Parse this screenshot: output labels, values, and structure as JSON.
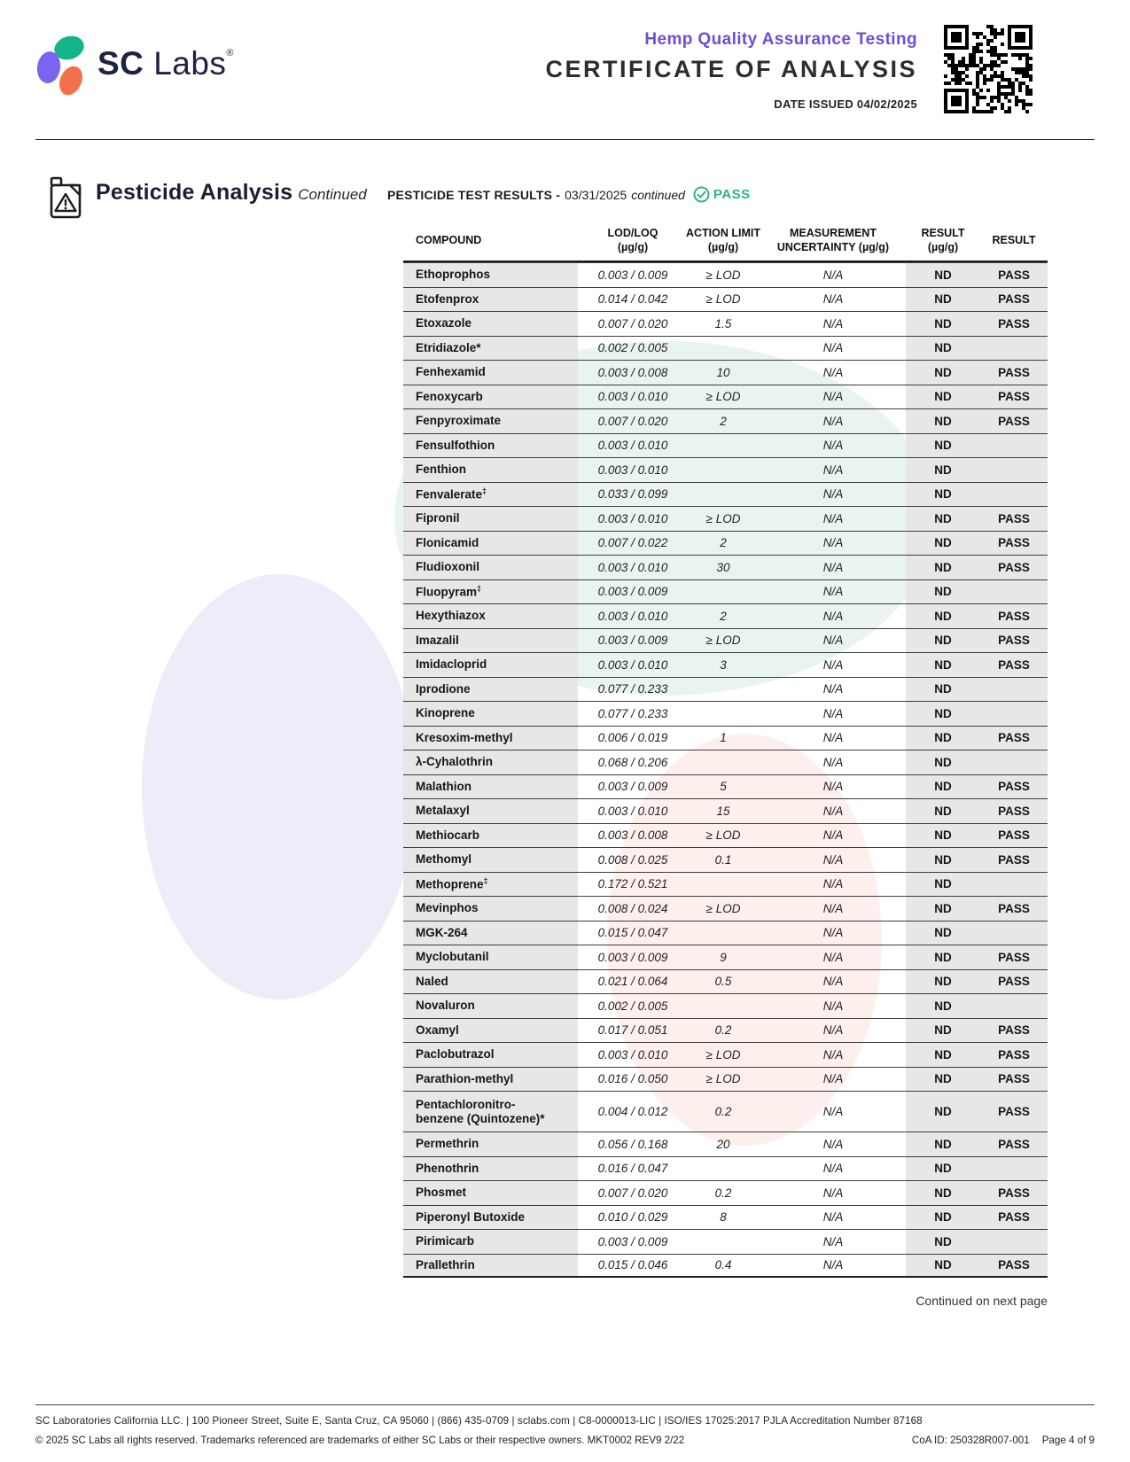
{
  "header": {
    "brand_sc": "SC",
    "brand_labs": "Labs",
    "brand_reg": "®",
    "program": "Hemp Quality Assurance Testing",
    "title": "CERTIFICATE OF ANALYSIS",
    "date_issued": "DATE ISSUED 04/02/2025"
  },
  "section": {
    "title": "Pesticide Analysis",
    "continued": "Continued",
    "results_label": "PESTICIDE TEST RESULTS -",
    "results_date": "03/31/2025",
    "results_continued": "continued",
    "overall_status": "PASS"
  },
  "table": {
    "columns": [
      {
        "label": "COMPOUND",
        "sub": ""
      },
      {
        "label": "LOD/LOQ",
        "sub": "(µg/g)"
      },
      {
        "label": "ACTION LIMIT",
        "sub": "(µg/g)"
      },
      {
        "label": "MEASUREMENT",
        "sub": "UNCERTAINTY (µg/g)"
      },
      {
        "label": "RESULT",
        "sub": "(µg/g)"
      },
      {
        "label": "RESULT",
        "sub": ""
      }
    ],
    "rows": [
      {
        "name": "Ethoprophos",
        "mark": "",
        "lod_loq": "0.003 / 0.009",
        "action_limit": "≥ LOD",
        "uncertainty": "N/A",
        "result": "ND",
        "status": "PASS"
      },
      {
        "name": "Etofenprox",
        "mark": "",
        "lod_loq": "0.014 / 0.042",
        "action_limit": "≥ LOD",
        "uncertainty": "N/A",
        "result": "ND",
        "status": "PASS"
      },
      {
        "name": "Etoxazole",
        "mark": "",
        "lod_loq": "0.007 / 0.020",
        "action_limit": "1.5",
        "uncertainty": "N/A",
        "result": "ND",
        "status": "PASS"
      },
      {
        "name": "Etridiazole*",
        "mark": "",
        "lod_loq": "0.002 / 0.005",
        "action_limit": "",
        "uncertainty": "N/A",
        "result": "ND",
        "status": ""
      },
      {
        "name": "Fenhexamid",
        "mark": "",
        "lod_loq": "0.003 / 0.008",
        "action_limit": "10",
        "uncertainty": "N/A",
        "result": "ND",
        "status": "PASS"
      },
      {
        "name": "Fenoxycarb",
        "mark": "",
        "lod_loq": "0.003 / 0.010",
        "action_limit": "≥ LOD",
        "uncertainty": "N/A",
        "result": "ND",
        "status": "PASS"
      },
      {
        "name": "Fenpyroximate",
        "mark": "",
        "lod_loq": "0.007 / 0.020",
        "action_limit": "2",
        "uncertainty": "N/A",
        "result": "ND",
        "status": "PASS"
      },
      {
        "name": "Fensulfothion",
        "mark": "",
        "lod_loq": "0.003 / 0.010",
        "action_limit": "",
        "uncertainty": "N/A",
        "result": "ND",
        "status": ""
      },
      {
        "name": "Fenthion",
        "mark": "",
        "lod_loq": "0.003 / 0.010",
        "action_limit": "",
        "uncertainty": "N/A",
        "result": "ND",
        "status": ""
      },
      {
        "name": "Fenvalerate",
        "mark": "‡",
        "lod_loq": "0.033 / 0.099",
        "action_limit": "",
        "uncertainty": "N/A",
        "result": "ND",
        "status": ""
      },
      {
        "name": "Fipronil",
        "mark": "",
        "lod_loq": "0.003 / 0.010",
        "action_limit": "≥ LOD",
        "uncertainty": "N/A",
        "result": "ND",
        "status": "PASS"
      },
      {
        "name": "Flonicamid",
        "mark": "",
        "lod_loq": "0.007 / 0.022",
        "action_limit": "2",
        "uncertainty": "N/A",
        "result": "ND",
        "status": "PASS"
      },
      {
        "name": "Fludioxonil",
        "mark": "",
        "lod_loq": "0.003 / 0.010",
        "action_limit": "30",
        "uncertainty": "N/A",
        "result": "ND",
        "status": "PASS"
      },
      {
        "name": "Fluopyram",
        "mark": "‡",
        "lod_loq": "0.003 / 0.009",
        "action_limit": "",
        "uncertainty": "N/A",
        "result": "ND",
        "status": ""
      },
      {
        "name": "Hexythiazox",
        "mark": "",
        "lod_loq": "0.003 / 0.010",
        "action_limit": "2",
        "uncertainty": "N/A",
        "result": "ND",
        "status": "PASS"
      },
      {
        "name": "Imazalil",
        "mark": "",
        "lod_loq": "0.003 / 0.009",
        "action_limit": "≥ LOD",
        "uncertainty": "N/A",
        "result": "ND",
        "status": "PASS"
      },
      {
        "name": "Imidacloprid",
        "mark": "",
        "lod_loq": "0.003 / 0.010",
        "action_limit": "3",
        "uncertainty": "N/A",
        "result": "ND",
        "status": "PASS"
      },
      {
        "name": "Iprodione",
        "mark": "",
        "lod_loq": "0.077 / 0.233",
        "action_limit": "",
        "uncertainty": "N/A",
        "result": "ND",
        "status": ""
      },
      {
        "name": "Kinoprene",
        "mark": "",
        "lod_loq": "0.077 / 0.233",
        "action_limit": "",
        "uncertainty": "N/A",
        "result": "ND",
        "status": ""
      },
      {
        "name": "Kresoxim-methyl",
        "mark": "",
        "lod_loq": "0.006 / 0.019",
        "action_limit": "1",
        "uncertainty": "N/A",
        "result": "ND",
        "status": "PASS"
      },
      {
        "name": "λ-Cyhalothrin",
        "mark": "",
        "lod_loq": "0.068 / 0.206",
        "action_limit": "",
        "uncertainty": "N/A",
        "result": "ND",
        "status": ""
      },
      {
        "name": "Malathion",
        "mark": "",
        "lod_loq": "0.003 / 0.009",
        "action_limit": "5",
        "uncertainty": "N/A",
        "result": "ND",
        "status": "PASS"
      },
      {
        "name": "Metalaxyl",
        "mark": "",
        "lod_loq": "0.003 / 0.010",
        "action_limit": "15",
        "uncertainty": "N/A",
        "result": "ND",
        "status": "PASS"
      },
      {
        "name": "Methiocarb",
        "mark": "",
        "lod_loq": "0.003 / 0.008",
        "action_limit": "≥ LOD",
        "uncertainty": "N/A",
        "result": "ND",
        "status": "PASS"
      },
      {
        "name": "Methomyl",
        "mark": "",
        "lod_loq": "0.008 / 0.025",
        "action_limit": "0.1",
        "uncertainty": "N/A",
        "result": "ND",
        "status": "PASS"
      },
      {
        "name": "Methoprene",
        "mark": "‡",
        "lod_loq": "0.172 / 0.521",
        "action_limit": "",
        "uncertainty": "N/A",
        "result": "ND",
        "status": ""
      },
      {
        "name": "Mevinphos",
        "mark": "",
        "lod_loq": "0.008 / 0.024",
        "action_limit": "≥ LOD",
        "uncertainty": "N/A",
        "result": "ND",
        "status": "PASS"
      },
      {
        "name": "MGK-264",
        "mark": "",
        "lod_loq": "0.015 / 0.047",
        "action_limit": "",
        "uncertainty": "N/A",
        "result": "ND",
        "status": ""
      },
      {
        "name": "Myclobutanil",
        "mark": "",
        "lod_loq": "0.003 / 0.009",
        "action_limit": "9",
        "uncertainty": "N/A",
        "result": "ND",
        "status": "PASS"
      },
      {
        "name": "Naled",
        "mark": "",
        "lod_loq": "0.021 / 0.064",
        "action_limit": "0.5",
        "uncertainty": "N/A",
        "result": "ND",
        "status": "PASS"
      },
      {
        "name": "Novaluron",
        "mark": "",
        "lod_loq": "0.002 / 0.005",
        "action_limit": "",
        "uncertainty": "N/A",
        "result": "ND",
        "status": ""
      },
      {
        "name": "Oxamyl",
        "mark": "",
        "lod_loq": "0.017 / 0.051",
        "action_limit": "0.2",
        "uncertainty": "N/A",
        "result": "ND",
        "status": "PASS"
      },
      {
        "name": "Paclobutrazol",
        "mark": "",
        "lod_loq": "0.003 / 0.010",
        "action_limit": "≥ LOD",
        "uncertainty": "N/A",
        "result": "ND",
        "status": "PASS"
      },
      {
        "name": "Parathion-methyl",
        "mark": "",
        "lod_loq": "0.016 / 0.050",
        "action_limit": "≥ LOD",
        "uncertainty": "N/A",
        "result": "ND",
        "status": "PASS"
      },
      {
        "name": "Pentachloronitro-\nbenzene (Quintozene)*",
        "mark": "",
        "lod_loq": "0.004 / 0.012",
        "action_limit": "0.2",
        "uncertainty": "N/A",
        "result": "ND",
        "status": "PASS",
        "tall": true
      },
      {
        "name": "Permethrin",
        "mark": "",
        "lod_loq": "0.056 / 0.168",
        "action_limit": "20",
        "uncertainty": "N/A",
        "result": "ND",
        "status": "PASS"
      },
      {
        "name": "Phenothrin",
        "mark": "",
        "lod_loq": "0.016 / 0.047",
        "action_limit": "",
        "uncertainty": "N/A",
        "result": "ND",
        "status": ""
      },
      {
        "name": "Phosmet",
        "mark": "",
        "lod_loq": "0.007 / 0.020",
        "action_limit": "0.2",
        "uncertainty": "N/A",
        "result": "ND",
        "status": "PASS"
      },
      {
        "name": "Piperonyl Butoxide",
        "mark": "",
        "lod_loq": "0.010 / 0.029",
        "action_limit": "8",
        "uncertainty": "N/A",
        "result": "ND",
        "status": "PASS"
      },
      {
        "name": "Pirimicarb",
        "mark": "",
        "lod_loq": "0.003 / 0.009",
        "action_limit": "",
        "uncertainty": "N/A",
        "result": "ND",
        "status": ""
      },
      {
        "name": "Prallethrin",
        "mark": "",
        "lod_loq": "0.015 / 0.046",
        "action_limit": "0.4",
        "uncertainty": "N/A",
        "result": "ND",
        "status": "PASS"
      }
    ]
  },
  "continued_note": "Continued on next page",
  "footer": {
    "line1": "SC Laboratories California LLC. | 100 Pioneer Street, Suite E, Santa Cruz, CA 95060 | (866) 435-0709 | sclabs.com | C8-0000013-LIC | ISO/IES 17025:2017 PJLA Accreditation Number 87168",
    "line2_left": "© 2025 SC Labs all rights reserved. Trademarks referenced are trademarks of either SC Labs or their respective owners. MKT0002 REV9 2/22",
    "coa_id": "CoA ID: 250328R007-001",
    "page": "Page 4 of 9"
  },
  "colors": {
    "accent_purple": "#6d4fd2",
    "brand_navy": "#1e2142",
    "pass_teal": "#2fb188",
    "cell_gray": "#e7e7e7",
    "petal_purple": "#7c63f0",
    "petal_teal": "#15b58a",
    "petal_orange": "#f4704b"
  }
}
